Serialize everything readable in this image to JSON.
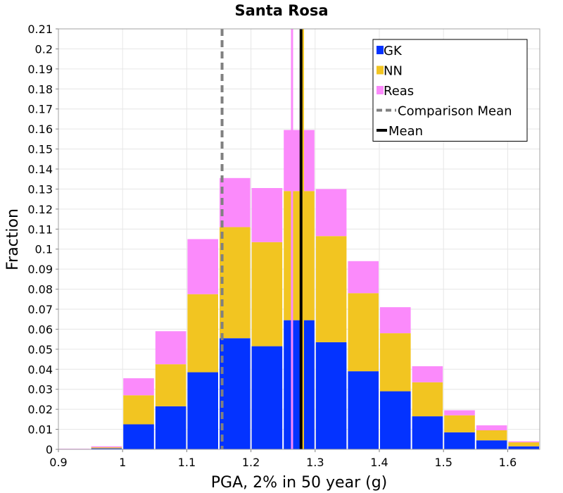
{
  "chart_data": {
    "type": "bar",
    "stacked": true,
    "title": "Santa Rosa",
    "xlabel": "PGA, 2% in 50 year (g)",
    "ylabel": "Fraction",
    "xlim": [
      0.9,
      1.65
    ],
    "ylim": [
      0,
      0.21
    ],
    "x_ticks": [
      "0.9",
      "1",
      "1.1",
      "1.2",
      "1.3",
      "1.4",
      "1.5",
      "1.6"
    ],
    "y_ticks": [
      "0",
      "0.01",
      "0.02",
      "0.03",
      "0.04",
      "0.05",
      "0.06",
      "0.07",
      "0.08",
      "0.09",
      "0.1",
      "0.11",
      "0.12",
      "0.13",
      "0.14",
      "0.15",
      "0.16",
      "0.17",
      "0.18",
      "0.19",
      "0.2",
      "0.21"
    ],
    "grid": true,
    "legend_position": "top-right",
    "bin_width": 0.05,
    "bin_starts": [
      0.9,
      0.95,
      1.0,
      1.05,
      1.1,
      1.15,
      1.2,
      1.25,
      1.3,
      1.35,
      1.4,
      1.45,
      1.5,
      1.55,
      1.6
    ],
    "series": [
      {
        "name": "GK",
        "color": "#0433ff",
        "values": [
          0.0,
          0.0005,
          0.0125,
          0.0215,
          0.0385,
          0.0555,
          0.0515,
          0.0645,
          0.0535,
          0.039,
          0.029,
          0.0165,
          0.0085,
          0.0045,
          0.0015
        ]
      },
      {
        "name": "NN",
        "color": "#f2c521",
        "values": [
          0.0,
          0.0005,
          0.0145,
          0.021,
          0.039,
          0.0555,
          0.052,
          0.0645,
          0.053,
          0.039,
          0.029,
          0.017,
          0.0085,
          0.005,
          0.002
        ]
      },
      {
        "name": "Reas",
        "color": "#fb8afb",
        "values": [
          0.0003,
          0.0005,
          0.0085,
          0.0165,
          0.0275,
          0.0245,
          0.027,
          0.0305,
          0.0235,
          0.016,
          0.013,
          0.008,
          0.0025,
          0.0025,
          0.0005
        ]
      }
    ],
    "lines": [
      {
        "name": "Comparison Mean",
        "x": 1.155,
        "color": "#808080",
        "style": "dashed"
      },
      {
        "name": "Mean",
        "x": 1.278,
        "color": "#000000",
        "style": "solid"
      }
    ],
    "extra_vertical_lines": [
      {
        "series": "Reas",
        "x": 1.264,
        "color": "#fb8afb"
      },
      {
        "series": "NN",
        "x": 1.281,
        "color": "#f2c521"
      }
    ],
    "legend": [
      "GK",
      "NN",
      "Reas",
      "Comparison Mean",
      "Mean"
    ]
  }
}
